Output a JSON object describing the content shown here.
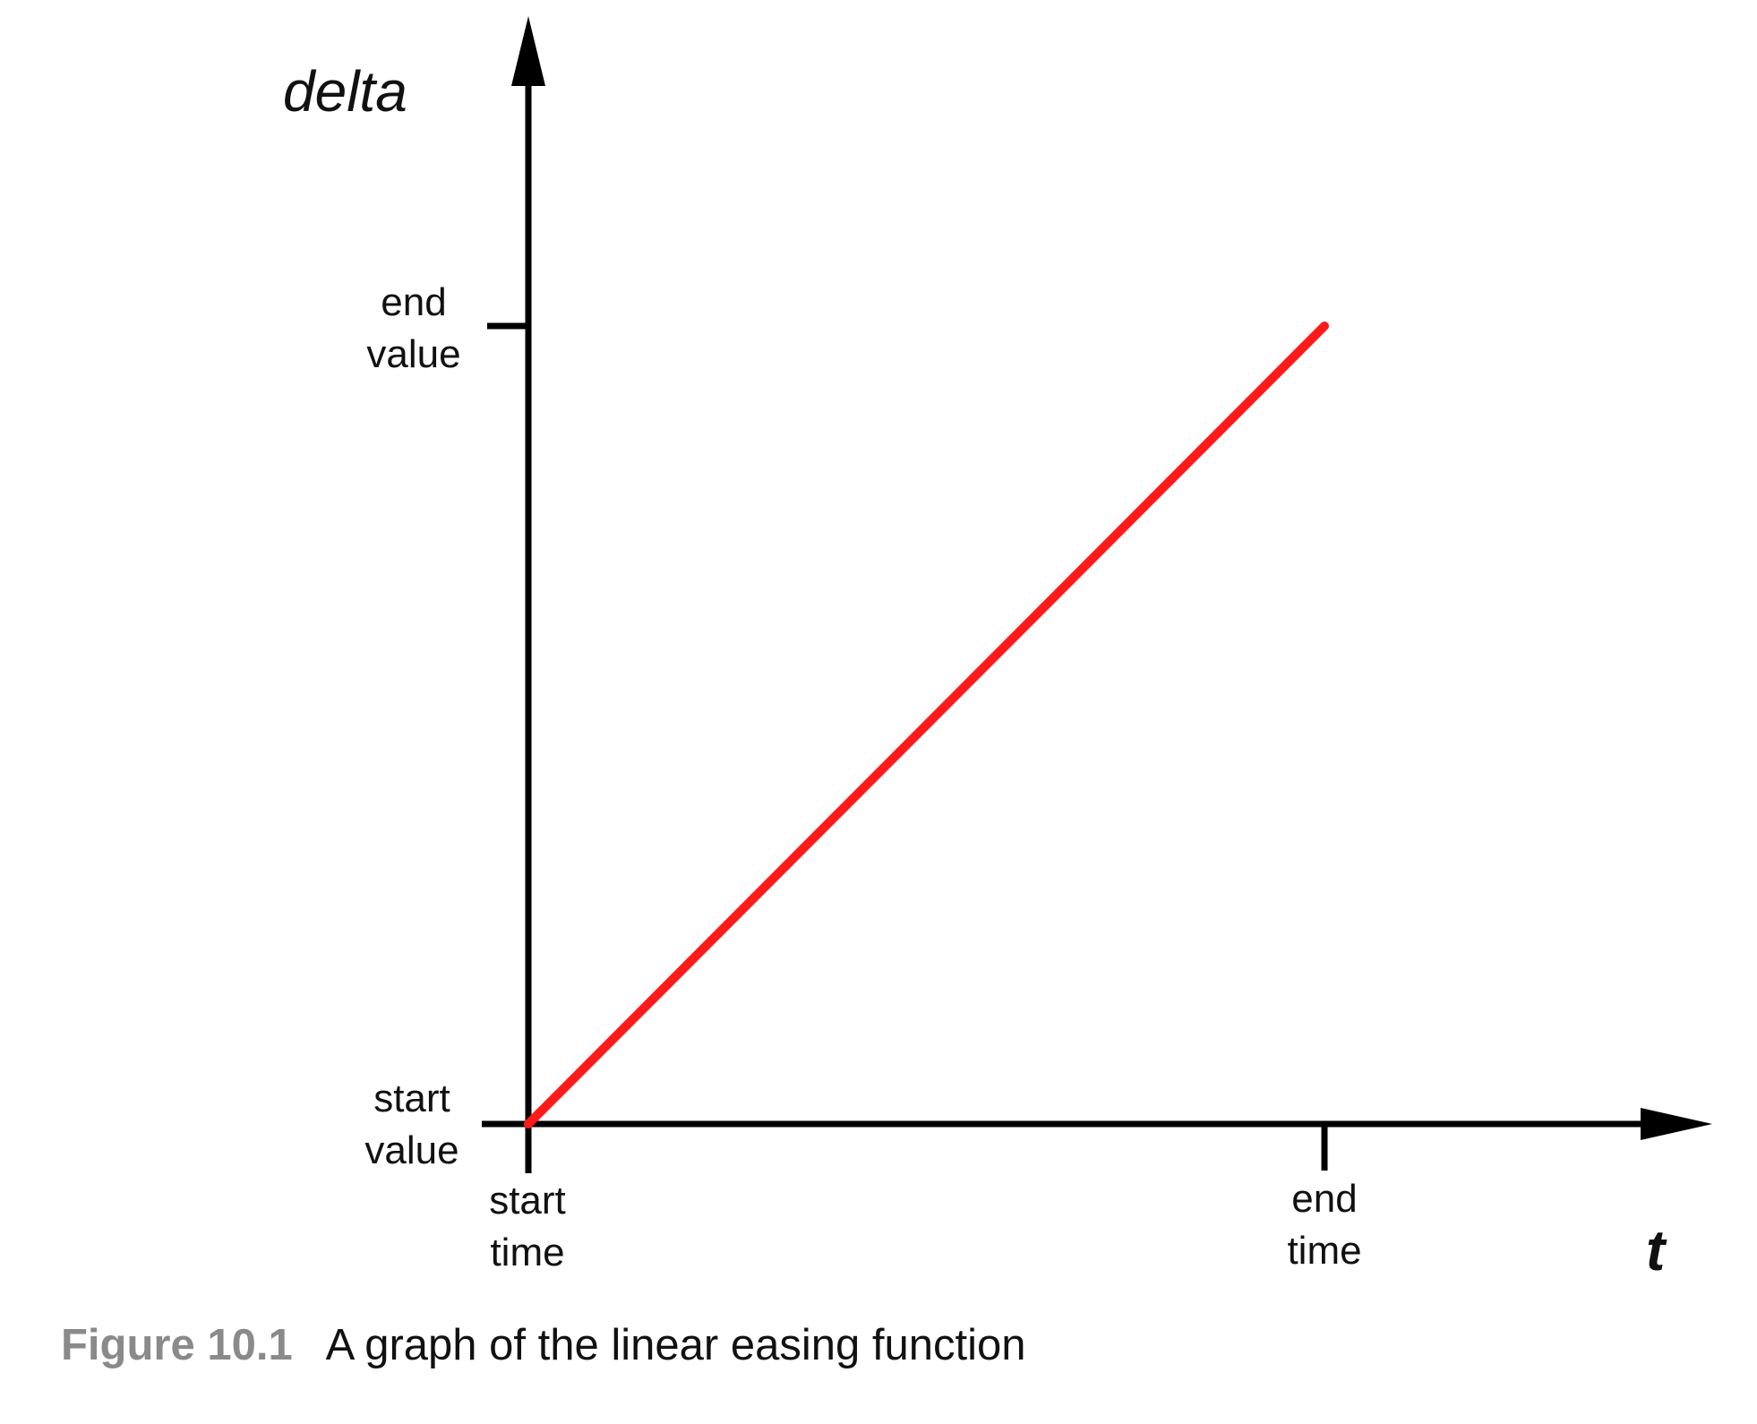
{
  "chart_data": {
    "type": "line",
    "title": "",
    "xlabel": "t",
    "ylabel": "delta",
    "x_ticks": [
      {
        "value": 0,
        "lines": [
          "start",
          "time"
        ]
      },
      {
        "value": 1,
        "lines": [
          "end",
          "time"
        ]
      }
    ],
    "y_ticks": [
      {
        "value": 0,
        "lines": [
          "start",
          "value"
        ]
      },
      {
        "value": 1,
        "lines": [
          "end",
          "value"
        ]
      }
    ],
    "series": [
      {
        "x": [
          0,
          1
        ],
        "y": [
          0,
          1
        ],
        "color": "#ff1a1a"
      }
    ]
  },
  "caption": {
    "label": "Figure 10.1",
    "text": "A graph of the linear easing function"
  },
  "colors": {
    "axis": "#000000",
    "line": "#ff1a1a",
    "caption_label": "#8a8a8a"
  }
}
